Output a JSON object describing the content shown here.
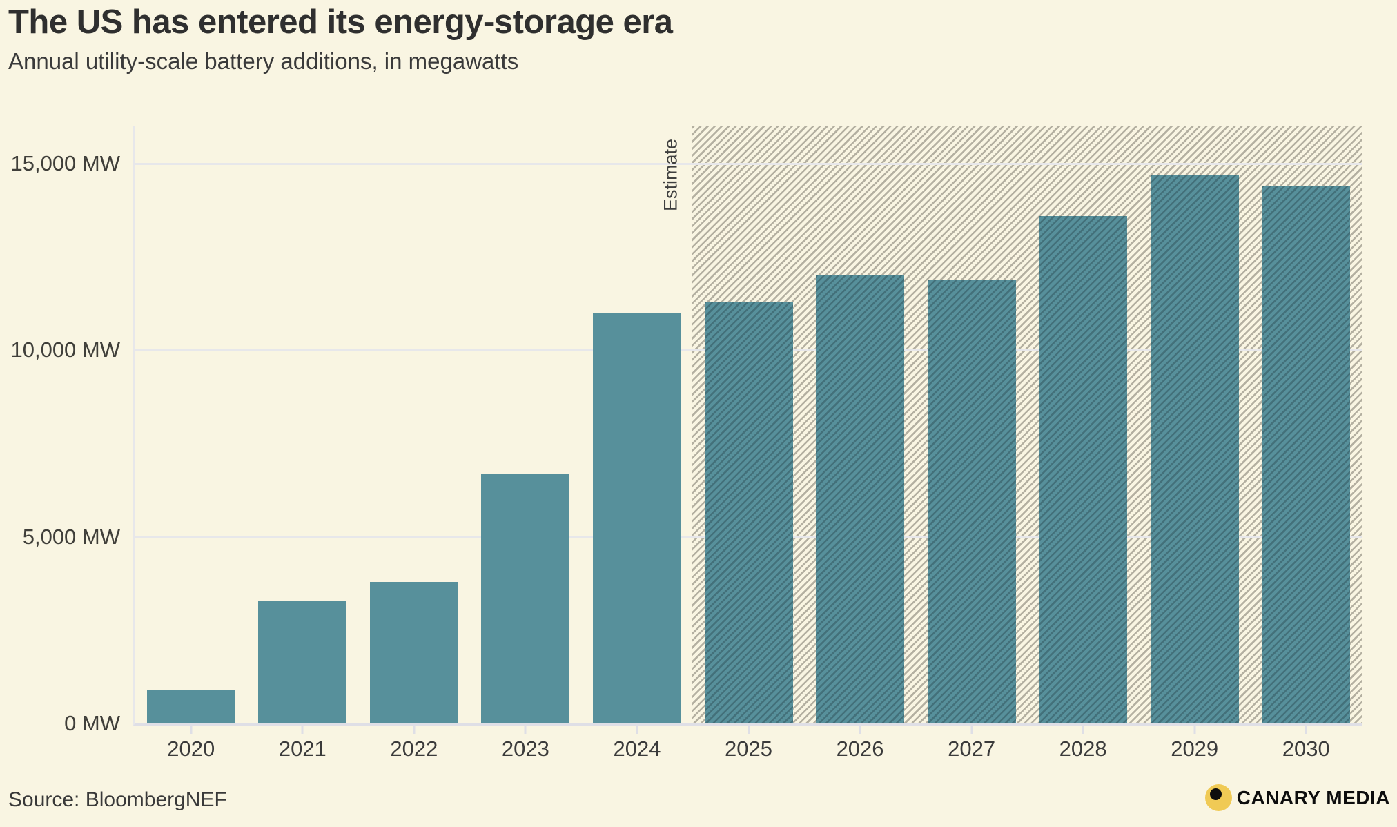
{
  "header": {
    "title": "The US has entered its energy-storage era",
    "subtitle": "Annual utility-scale battery additions, in megawatts"
  },
  "chart_data": {
    "type": "bar",
    "title": "The US has entered its energy-storage era",
    "subtitle": "Annual utility-scale battery additions, in megawatts",
    "unit": "MW",
    "categories": [
      "2020",
      "2021",
      "2022",
      "2023",
      "2024",
      "2025",
      "2026",
      "2027",
      "2028",
      "2029",
      "2030"
    ],
    "values": [
      900,
      3300,
      3800,
      6700,
      11000,
      11300,
      12000,
      11900,
      13600,
      14700,
      14400
    ],
    "ylim": [
      0,
      16000
    ],
    "y_ticks": [
      {
        "value": 0,
        "label": "0 MW"
      },
      {
        "value": 5000,
        "label": "5,000 MW"
      },
      {
        "value": 10000,
        "label": "10,000 MW"
      },
      {
        "value": 15000,
        "label": "15,000 MW"
      }
    ],
    "grid": true,
    "legend": false,
    "estimate": {
      "label": "Estimate",
      "from_category": "2025"
    },
    "colors": {
      "bar": "#57909b",
      "background": "#f9f5e2",
      "hatch_line": "#b4b0a1",
      "gridline": "#e7e7ea",
      "logo_yellow": "#f0ca55"
    }
  },
  "footer": {
    "source": "Source: BloombergNEF",
    "brand": "CANARY MEDIA"
  }
}
